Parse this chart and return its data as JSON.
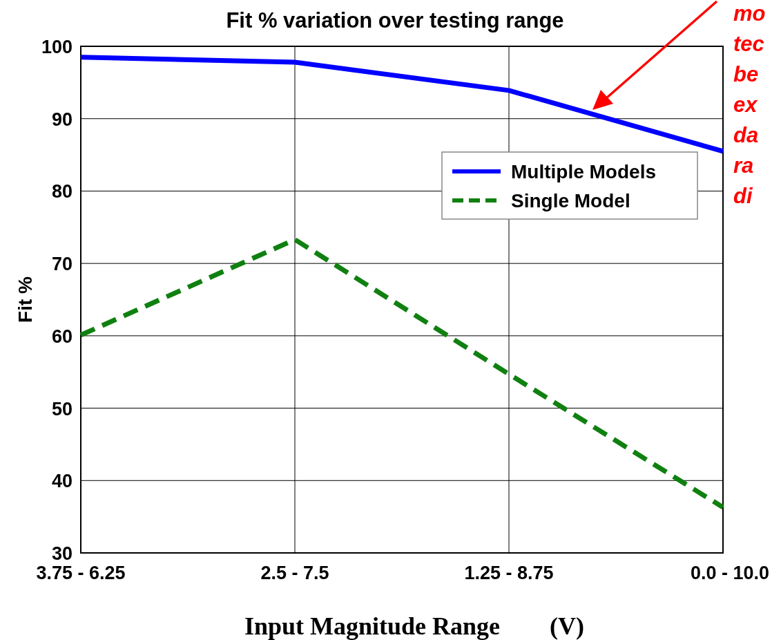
{
  "chart_data": {
    "type": "line",
    "title": "Fit % variation over testing range",
    "xlabel": "Input Magnitude Range        (V)",
    "ylabel": "Fit %",
    "categories": [
      "3.75 - 6.25",
      "2.5 - 7.5",
      "1.25 - 8.75",
      "0.0 - 10.0"
    ],
    "series": [
      {
        "name": "Multiple Models",
        "color": "#0000ff",
        "values": [
          98.5,
          97.8,
          93.9,
          85.5
        ],
        "line_style": "solid"
      },
      {
        "name": "Single Model",
        "color": "#108010",
        "values": [
          60.1,
          73.3,
          54.7,
          36.3
        ],
        "line_style": "dashed"
      }
    ],
    "ylim": [
      30,
      100
    ],
    "yticks": [
      30,
      40,
      50,
      60,
      70,
      80,
      90,
      100
    ],
    "grid": true,
    "legend": "right",
    "marker": "none",
    "annotations": [
      "mo\ntec\nbe\nex\nda\nra\ndi"
    ]
  }
}
